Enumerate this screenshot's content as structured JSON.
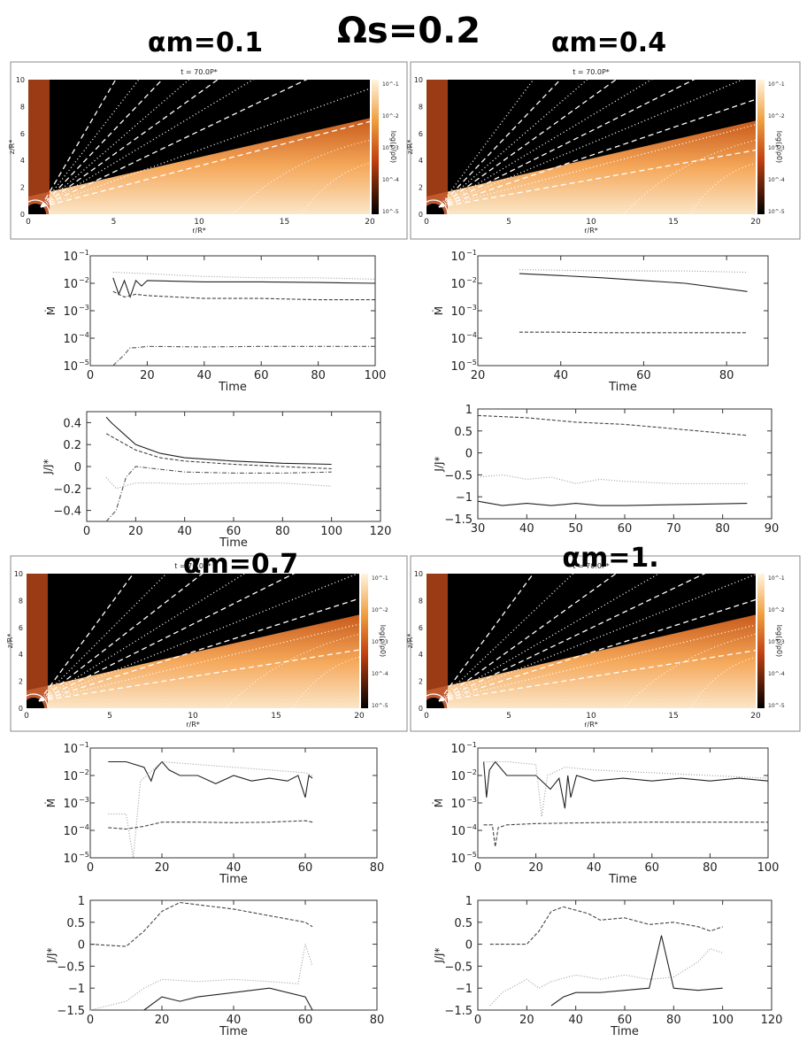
{
  "figure": {
    "title": "Ωs=0.2",
    "panel_labels": [
      "αm=0.1",
      "αm=0.4",
      "αm=0.7",
      "αm=1."
    ]
  },
  "chart_data": [
    {
      "type": "heatmap",
      "panel": "αm=0.1",
      "title": "t = 70.0P*",
      "xlabel": "r/R*",
      "ylabel": "z/R*",
      "xlim": [
        0,
        20
      ],
      "ylim": [
        0,
        10
      ],
      "xticks": [
        "0",
        "5",
        "10",
        "15",
        "20"
      ],
      "yticks": [
        "0",
        "2",
        "4",
        "6",
        "8",
        "10"
      ],
      "colorbar_label": "log(ρ/ρ0)",
      "colorbar_ticks": [
        "10^-1",
        "10^-2",
        "10^-3",
        "10^-4",
        "10^-5"
      ]
    },
    {
      "type": "heatmap",
      "panel": "αm=0.4",
      "title": "t = 70.0P*",
      "xlabel": "r/R*",
      "ylabel": "z/R*",
      "xlim": [
        0,
        20
      ],
      "ylim": [
        0,
        10
      ],
      "xticks": [
        "0",
        "5",
        "10",
        "15",
        "20"
      ],
      "yticks": [
        "0",
        "2",
        "4",
        "6",
        "8",
        "10"
      ],
      "colorbar_label": "log(ρ/ρ0)",
      "colorbar_ticks": [
        "10^-1",
        "10^-2",
        "10^-3",
        "10^-4",
        "10^-5"
      ]
    },
    {
      "type": "heatmap",
      "panel": "αm=0.7",
      "title": "t = 70.0P*",
      "xlabel": "r/R*",
      "ylabel": "z/R*",
      "xlim": [
        0,
        20
      ],
      "ylim": [
        0,
        10
      ],
      "xticks": [
        "0",
        "5",
        "10",
        "15",
        "20"
      ],
      "yticks": [
        "0",
        "2",
        "4",
        "6",
        "8",
        "10"
      ],
      "colorbar_label": "log(ρ/ρ0)",
      "colorbar_ticks": [
        "10^-1",
        "10^-2",
        "10^-3",
        "10^-4",
        "10^-5"
      ]
    },
    {
      "type": "heatmap",
      "panel": "αm=1.",
      "title": "t = 70.0P*",
      "xlabel": "r/R*",
      "ylabel": "z/R*",
      "xlim": [
        0,
        20
      ],
      "ylim": [
        0,
        10
      ],
      "xticks": [
        "0",
        "5",
        "10",
        "15",
        "20"
      ],
      "yticks": [
        "0",
        "2",
        "4",
        "6",
        "8",
        "10"
      ],
      "colorbar_label": "log(ρ/ρ0)",
      "colorbar_ticks": [
        "10^-1",
        "10^-2",
        "10^-3",
        "10^-4",
        "10^-5"
      ]
    },
    {
      "type": "line",
      "panel": "αm=0.1",
      "ylabel": "Ṁ",
      "xlabel": "Time",
      "log": true,
      "xlim": [
        0,
        100
      ],
      "ylim": [
        -5,
        -1
      ],
      "xticks": [
        0,
        20,
        40,
        60,
        80,
        100
      ],
      "yticks": [
        -5,
        -4,
        -3,
        -2,
        -1
      ],
      "series": [
        {
          "style": "solid",
          "x": [
            8,
            10,
            12,
            14,
            16,
            18,
            20,
            40,
            60,
            80,
            100
          ],
          "y": [
            -1.8,
            -2.4,
            -1.9,
            -2.5,
            -1.9,
            -2.1,
            -1.9,
            -1.95,
            -1.95,
            -1.97,
            -2.0
          ]
        },
        {
          "style": "dash",
          "x": [
            8,
            12,
            16,
            20,
            30,
            40,
            60,
            80,
            100
          ],
          "y": [
            -2.3,
            -2.5,
            -2.4,
            -2.45,
            -2.5,
            -2.55,
            -2.55,
            -2.6,
            -2.6
          ]
        },
        {
          "style": "dot",
          "x": [
            8,
            20,
            40,
            60,
            80,
            100
          ],
          "y": [
            -1.6,
            -1.65,
            -1.75,
            -1.8,
            -1.8,
            -1.85
          ]
        },
        {
          "style": "dashdot",
          "x": [
            8,
            12,
            14,
            16,
            20,
            40,
            60,
            80,
            100
          ],
          "y": [
            -5.0,
            -4.6,
            -4.35,
            -4.35,
            -4.3,
            -4.32,
            -4.3,
            -4.3,
            -4.3
          ]
        }
      ]
    },
    {
      "type": "line",
      "panel": "αm=0.4",
      "ylabel": "Ṁ",
      "xlabel": "Time",
      "log": true,
      "xlim": [
        20,
        90
      ],
      "ylim": [
        -5,
        -1
      ],
      "xticks": [
        20,
        40,
        60,
        80
      ],
      "yticks": [
        -5,
        -4,
        -3,
        -2,
        -1
      ],
      "series": [
        {
          "style": "solid",
          "x": [
            30,
            40,
            50,
            60,
            70,
            80,
            85
          ],
          "y": [
            -1.65,
            -1.72,
            -1.8,
            -1.9,
            -2.0,
            -2.2,
            -2.3
          ]
        },
        {
          "style": "dot",
          "x": [
            30,
            50,
            70,
            85
          ],
          "y": [
            -1.5,
            -1.55,
            -1.55,
            -1.6
          ]
        },
        {
          "style": "dash",
          "x": [
            30,
            40,
            50,
            60,
            70,
            85
          ],
          "y": [
            -3.78,
            -3.78,
            -3.8,
            -3.8,
            -3.8,
            -3.8
          ]
        }
      ]
    },
    {
      "type": "line",
      "panel": "αm=0.7",
      "ylabel": "Ṁ",
      "xlabel": "Time",
      "log": true,
      "xlim": [
        0,
        80
      ],
      "ylim": [
        -5,
        -1
      ],
      "xticks": [
        0,
        20,
        40,
        60,
        80
      ],
      "yticks": [
        -5,
        -4,
        -3,
        -2,
        -1
      ],
      "series": [
        {
          "style": "solid",
          "x": [
            5,
            10,
            15,
            17,
            18,
            20,
            22,
            25,
            30,
            35,
            40,
            45,
            50,
            55,
            58,
            60,
            61,
            62
          ],
          "y": [
            -1.5,
            -1.5,
            -1.7,
            -2.2,
            -1.8,
            -1.5,
            -1.8,
            -2.0,
            -2.0,
            -2.3,
            -2.0,
            -2.2,
            -2.1,
            -2.2,
            -2.0,
            -2.8,
            -2.0,
            -2.1
          ]
        },
        {
          "style": "dot",
          "x": [
            5,
            10,
            12,
            14,
            20,
            30,
            40,
            50,
            60,
            62
          ],
          "y": [
            -3.4,
            -3.4,
            -5.0,
            -2.2,
            -1.5,
            -1.6,
            -1.7,
            -1.8,
            -1.9,
            -2.0
          ]
        },
        {
          "style": "dash",
          "x": [
            5,
            10,
            15,
            20,
            30,
            40,
            50,
            60,
            62
          ],
          "y": [
            -3.9,
            -3.95,
            -3.85,
            -3.7,
            -3.7,
            -3.72,
            -3.7,
            -3.65,
            -3.7
          ]
        }
      ]
    },
    {
      "type": "line",
      "panel": "αm=1.",
      "ylabel": "Ṁ",
      "xlabel": "Time",
      "log": true,
      "xlim": [
        0,
        100
      ],
      "ylim": [
        -5,
        -1
      ],
      "xticks": [
        0,
        20,
        40,
        60,
        80,
        100
      ],
      "yticks": [
        -5,
        -4,
        -3,
        -2,
        -1
      ],
      "series": [
        {
          "style": "solid",
          "x": [
            2,
            3,
            4,
            6,
            10,
            20,
            25,
            28,
            30,
            31,
            32,
            34,
            40,
            50,
            60,
            70,
            80,
            90,
            100
          ],
          "y": [
            -1.5,
            -2.8,
            -1.8,
            -1.5,
            -2.0,
            -2.0,
            -2.5,
            -2.1,
            -3.2,
            -2.0,
            -2.8,
            -2.0,
            -2.2,
            -2.1,
            -2.2,
            -2.1,
            -2.2,
            -2.1,
            -2.2
          ]
        },
        {
          "style": "dot",
          "x": [
            2,
            10,
            20,
            22,
            24,
            30,
            40,
            60,
            80,
            100
          ],
          "y": [
            -1.5,
            -1.5,
            -1.6,
            -3.5,
            -2.0,
            -1.7,
            -1.8,
            -1.9,
            -2.0,
            -2.1
          ]
        },
        {
          "style": "dash",
          "x": [
            2,
            5,
            6,
            7,
            10,
            20,
            40,
            60,
            80,
            100
          ],
          "y": [
            -3.8,
            -3.8,
            -4.6,
            -3.9,
            -3.8,
            -3.75,
            -3.72,
            -3.7,
            -3.7,
            -3.7
          ]
        }
      ]
    },
    {
      "type": "line",
      "panel": "αm=0.1",
      "ylabel": "J/J*",
      "xlabel": "Time",
      "xlim": [
        0,
        120
      ],
      "ylim": [
        -0.5,
        0.5
      ],
      "xticks": [
        0,
        20,
        40,
        60,
        80,
        100,
        120
      ],
      "yticks": [
        -0.4,
        -0.2,
        0,
        0.2,
        0.4
      ],
      "ytick_labels": [
        "−0.4",
        "−0.2",
        "0",
        "0.2",
        "0.4"
      ],
      "series": [
        {
          "style": "solid",
          "x": [
            8,
            10,
            15,
            20,
            30,
            40,
            60,
            80,
            100
          ],
          "y": [
            0.45,
            0.4,
            0.3,
            0.2,
            0.12,
            0.08,
            0.05,
            0.03,
            0.02
          ]
        },
        {
          "style": "dash",
          "x": [
            8,
            12,
            20,
            30,
            40,
            60,
            80,
            100
          ],
          "y": [
            0.3,
            0.25,
            0.15,
            0.08,
            0.05,
            0.02,
            0.0,
            -0.02
          ]
        },
        {
          "style": "dot",
          "x": [
            8,
            12,
            20,
            30,
            40,
            60,
            80,
            100
          ],
          "y": [
            -0.1,
            -0.2,
            -0.15,
            -0.15,
            -0.16,
            -0.15,
            -0.15,
            -0.18
          ]
        },
        {
          "style": "dashdot",
          "x": [
            8,
            12,
            16,
            20,
            40,
            60,
            80,
            100
          ],
          "y": [
            -0.5,
            -0.4,
            -0.1,
            0.0,
            -0.05,
            -0.06,
            -0.06,
            -0.05
          ]
        }
      ]
    },
    {
      "type": "line",
      "panel": "αm=0.4",
      "ylabel": "J/J*",
      "xlabel": "",
      "xlim": [
        30,
        90
      ],
      "ylim": [
        -1.5,
        1
      ],
      "xticks": [
        30,
        40,
        50,
        60,
        70,
        80,
        90
      ],
      "yticks": [
        -1.5,
        -1,
        -0.5,
        0,
        0.5,
        1
      ],
      "ytick_labels": [
        "−1.5",
        "−1",
        "−0.5",
        "0",
        "0.5",
        "1"
      ],
      "series": [
        {
          "style": "dash",
          "x": [
            30,
            40,
            50,
            60,
            70,
            80,
            85
          ],
          "y": [
            0.85,
            0.8,
            0.7,
            0.65,
            0.55,
            0.45,
            0.4
          ]
        },
        {
          "style": "dot",
          "x": [
            30,
            35,
            40,
            45,
            50,
            55,
            60,
            70,
            85
          ],
          "y": [
            -0.55,
            -0.5,
            -0.6,
            -0.55,
            -0.7,
            -0.6,
            -0.65,
            -0.7,
            -0.7
          ]
        },
        {
          "style": "solid",
          "x": [
            30,
            35,
            40,
            45,
            50,
            55,
            60,
            70,
            85
          ],
          "y": [
            -1.1,
            -1.2,
            -1.15,
            -1.2,
            -1.15,
            -1.2,
            -1.2,
            -1.18,
            -1.15
          ]
        }
      ]
    },
    {
      "type": "line",
      "panel": "αm=0.7",
      "ylabel": "J/J*",
      "xlabel": "Time",
      "xlim": [
        0,
        80
      ],
      "ylim": [
        -1.5,
        1
      ],
      "xticks": [
        0,
        20,
        40,
        60,
        80
      ],
      "yticks": [
        -1.5,
        -1,
        -0.5,
        0,
        0.5,
        1
      ],
      "ytick_labels": [
        "−1.5",
        "−1",
        "−0.5",
        "0",
        "0.5",
        "1"
      ],
      "series": [
        {
          "style": "dash",
          "x": [
            0,
            10,
            15,
            20,
            25,
            30,
            40,
            50,
            60,
            62
          ],
          "y": [
            0,
            -0.05,
            0.3,
            0.75,
            0.95,
            0.9,
            0.8,
            0.65,
            0.5,
            0.4
          ]
        },
        {
          "style": "dot",
          "x": [
            0,
            10,
            15,
            20,
            30,
            40,
            50,
            58,
            60,
            62
          ],
          "y": [
            -1.5,
            -1.3,
            -1.0,
            -0.8,
            -0.85,
            -0.8,
            -0.85,
            -0.9,
            0.0,
            -0.5
          ]
        },
        {
          "style": "solid",
          "x": [
            15,
            20,
            25,
            30,
            40,
            50,
            60,
            62
          ],
          "y": [
            -1.5,
            -1.2,
            -1.3,
            -1.2,
            -1.1,
            -1.0,
            -1.2,
            -1.5
          ]
        }
      ]
    },
    {
      "type": "line",
      "panel": "αm=1.",
      "ylabel": "J/J*",
      "xlabel": "Time",
      "xlim": [
        0,
        120
      ],
      "ylim": [
        -1.5,
        1
      ],
      "xticks": [
        0,
        20,
        40,
        60,
        80,
        100,
        120
      ],
      "yticks": [
        -1.5,
        -1,
        -0.5,
        0,
        0.5,
        1
      ],
      "ytick_labels": [
        "−1.5",
        "−1",
        "−0.5",
        "0",
        "0.5",
        "1"
      ],
      "series": [
        {
          "style": "dash",
          "x": [
            5,
            20,
            25,
            30,
            35,
            45,
            50,
            60,
            70,
            80,
            90,
            95,
            100
          ],
          "y": [
            0,
            0,
            0.3,
            0.75,
            0.85,
            0.7,
            0.55,
            0.6,
            0.45,
            0.5,
            0.4,
            0.3,
            0.4
          ]
        },
        {
          "style": "dot",
          "x": [
            5,
            10,
            20,
            25,
            30,
            40,
            50,
            60,
            70,
            80,
            90,
            95,
            100
          ],
          "y": [
            -1.4,
            -1.1,
            -0.8,
            -1.0,
            -0.85,
            -0.7,
            -0.8,
            -0.7,
            -0.8,
            -0.75,
            -0.4,
            -0.1,
            -0.2
          ]
        },
        {
          "style": "solid",
          "x": [
            30,
            35,
            40,
            50,
            60,
            70,
            75,
            80,
            90,
            100
          ],
          "y": [
            -1.4,
            -1.2,
            -1.1,
            -1.1,
            -1.05,
            -1.0,
            0.2,
            -1.0,
            -1.05,
            -1.0
          ]
        }
      ]
    }
  ]
}
